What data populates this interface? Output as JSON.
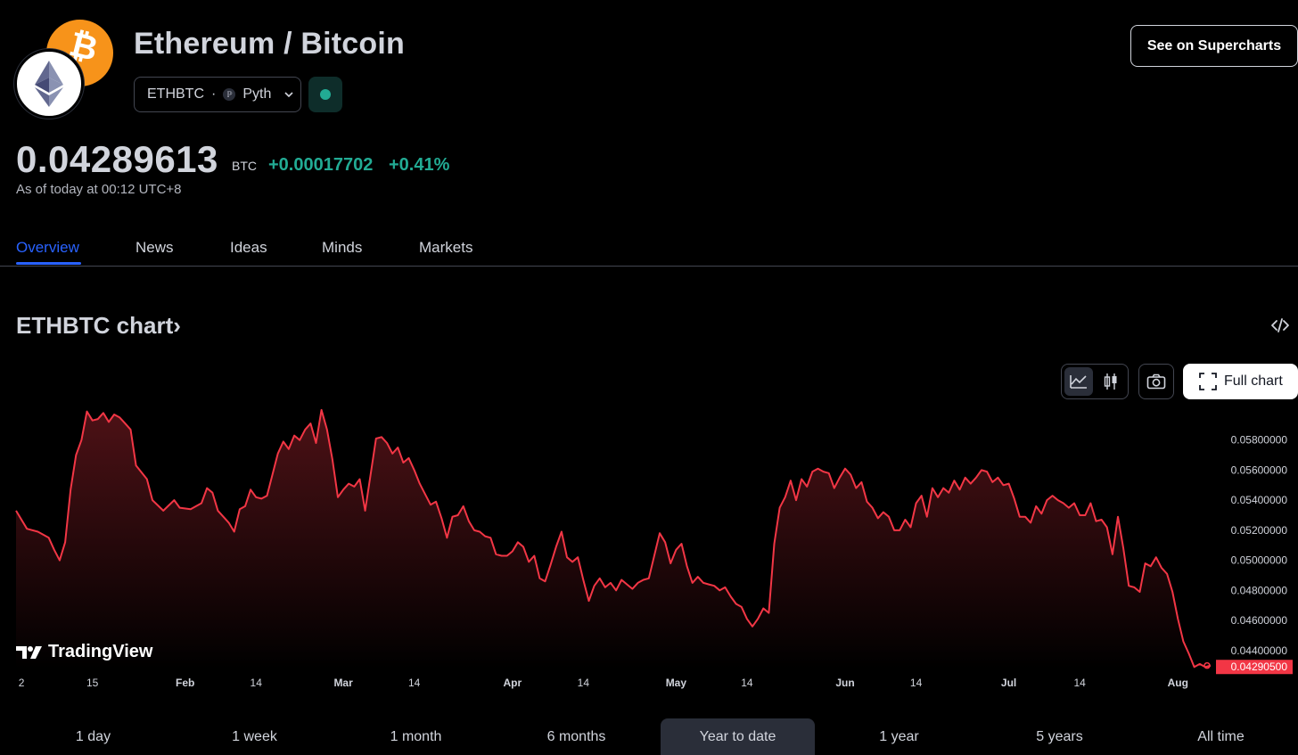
{
  "header": {
    "title": "Ethereum / Bitcoin",
    "symbol": "ETHBTC",
    "separator": "·",
    "source": "Pyth",
    "supercharts_label": "See on Supercharts",
    "btc_logo_glyph": "₿"
  },
  "quote": {
    "price": "0.04289613",
    "currency": "BTC",
    "change": "+0.00017702",
    "change_pct": "+0.41%",
    "as_of": "As of today at 00:12 UTC+8",
    "up_color": "#22ab94"
  },
  "tabs": [
    "Overview",
    "News",
    "Ideas",
    "Minds",
    "Markets"
  ],
  "active_tab": "Overview",
  "chart_section": {
    "heading": "ETHBTC chart",
    "heading_arrow": "›",
    "full_chart_label": "Full chart",
    "watermark": "TradingView"
  },
  "chart_data": {
    "type": "area",
    "line_color": "#f23645",
    "ylim": [
      0.0428,
      0.0597
    ],
    "y_ticks": [
      "0.05800000",
      "0.05600000",
      "0.05400000",
      "0.05200000",
      "0.05000000",
      "0.04800000",
      "0.04600000",
      "0.04400000"
    ],
    "y_tick_values": [
      0.058,
      0.056,
      0.054,
      0.052,
      0.05,
      0.048,
      0.046,
      0.044
    ],
    "last_value_label": "0.04290500",
    "last_value": 0.042905,
    "x_labels": [
      {
        "label": "2",
        "day": 2
      },
      {
        "label": "15",
        "day": 15
      },
      {
        "label": "Feb",
        "day": 32
      },
      {
        "label": "14",
        "day": 45
      },
      {
        "label": "Mar",
        "day": 61
      },
      {
        "label": "14",
        "day": 74
      },
      {
        "label": "Apr",
        "day": 92
      },
      {
        "label": "14",
        "day": 105
      },
      {
        "label": "May",
        "day": 122
      },
      {
        "label": "14",
        "day": 135
      },
      {
        "label": "Jun",
        "day": 153
      },
      {
        "label": "14",
        "day": 166
      },
      {
        "label": "Jul",
        "day": 183
      },
      {
        "label": "14",
        "day": 196
      },
      {
        "label": "Aug",
        "day": 214
      }
    ],
    "x_range": [
      1,
      220
    ],
    "points": [
      [
        1,
        0.0533
      ],
      [
        3,
        0.0521
      ],
      [
        5,
        0.0519
      ],
      [
        7,
        0.0515
      ],
      [
        8,
        0.0507
      ],
      [
        9,
        0.05
      ],
      [
        10,
        0.0512
      ],
      [
        11,
        0.0547
      ],
      [
        12,
        0.057
      ],
      [
        13,
        0.058
      ],
      [
        14,
        0.0599
      ],
      [
        15,
        0.0593
      ],
      [
        16,
        0.0594
      ],
      [
        17,
        0.0598
      ],
      [
        18,
        0.0592
      ],
      [
        19,
        0.0597
      ],
      [
        20,
        0.0595
      ],
      [
        21,
        0.0591
      ],
      [
        22,
        0.0587
      ],
      [
        23,
        0.0563
      ],
      [
        25,
        0.0554
      ],
      [
        26,
        0.054
      ],
      [
        28,
        0.0533
      ],
      [
        30,
        0.054
      ],
      [
        31,
        0.0535
      ],
      [
        33,
        0.0534
      ],
      [
        35,
        0.0538
      ],
      [
        36,
        0.0548
      ],
      [
        37,
        0.0545
      ],
      [
        38,
        0.0533
      ],
      [
        40,
        0.0525
      ],
      [
        41,
        0.0519
      ],
      [
        42,
        0.0534
      ],
      [
        43,
        0.0536
      ],
      [
        44,
        0.0547
      ],
      [
        45,
        0.0542
      ],
      [
        46,
        0.0541
      ],
      [
        47,
        0.0543
      ],
      [
        48,
        0.0557
      ],
      [
        49,
        0.0571
      ],
      [
        50,
        0.0579
      ],
      [
        51,
        0.0574
      ],
      [
        52,
        0.0583
      ],
      [
        53,
        0.058
      ],
      [
        54,
        0.0587
      ],
      [
        55,
        0.0591
      ],
      [
        56,
        0.0578
      ],
      [
        57,
        0.06
      ],
      [
        58,
        0.0587
      ],
      [
        59,
        0.0567
      ],
      [
        60,
        0.0542
      ],
      [
        61,
        0.0547
      ],
      [
        62,
        0.0551
      ],
      [
        63,
        0.0549
      ],
      [
        64,
        0.0554
      ],
      [
        65,
        0.0533
      ],
      [
        66,
        0.0557
      ],
      [
        67,
        0.0581
      ],
      [
        68,
        0.0582
      ],
      [
        69,
        0.0578
      ],
      [
        70,
        0.0571
      ],
      [
        71,
        0.0575
      ],
      [
        72,
        0.0565
      ],
      [
        73,
        0.0568
      ],
      [
        74,
        0.056
      ],
      [
        75,
        0.0551
      ],
      [
        76,
        0.0544
      ],
      [
        77,
        0.0537
      ],
      [
        78,
        0.0539
      ],
      [
        79,
        0.0528
      ],
      [
        80,
        0.0515
      ],
      [
        81,
        0.0529
      ],
      [
        82,
        0.053
      ],
      [
        83,
        0.0536
      ],
      [
        84,
        0.0526
      ],
      [
        85,
        0.052
      ],
      [
        86,
        0.0519
      ],
      [
        87,
        0.0516
      ],
      [
        88,
        0.0515
      ],
      [
        89,
        0.0504
      ],
      [
        90,
        0.0503
      ],
      [
        91,
        0.0503
      ],
      [
        92,
        0.0506
      ],
      [
        93,
        0.0512
      ],
      [
        94,
        0.0509
      ],
      [
        95,
        0.0499
      ],
      [
        96,
        0.0503
      ],
      [
        97,
        0.0488
      ],
      [
        98,
        0.0486
      ],
      [
        99,
        0.0497
      ],
      [
        100,
        0.0509
      ],
      [
        101,
        0.0519
      ],
      [
        102,
        0.0502
      ],
      [
        103,
        0.0499
      ],
      [
        104,
        0.0502
      ],
      [
        105,
        0.0487
      ],
      [
        106,
        0.0473
      ],
      [
        107,
        0.0483
      ],
      [
        108,
        0.0488
      ],
      [
        109,
        0.0482
      ],
      [
        110,
        0.0485
      ],
      [
        111,
        0.048
      ],
      [
        112,
        0.0487
      ],
      [
        113,
        0.0484
      ],
      [
        114,
        0.0481
      ],
      [
        115,
        0.0485
      ],
      [
        116,
        0.0487
      ],
      [
        117,
        0.0488
      ],
      [
        118,
        0.0503
      ],
      [
        119,
        0.0518
      ],
      [
        120,
        0.0512
      ],
      [
        121,
        0.0498
      ],
      [
        122,
        0.0507
      ],
      [
        123,
        0.0511
      ],
      [
        124,
        0.0496
      ],
      [
        125,
        0.0485
      ],
      [
        126,
        0.0489
      ],
      [
        127,
        0.0485
      ],
      [
        128,
        0.0484
      ],
      [
        129,
        0.0483
      ],
      [
        130,
        0.048
      ],
      [
        131,
        0.0482
      ],
      [
        132,
        0.0476
      ],
      [
        133,
        0.0471
      ],
      [
        134,
        0.0469
      ],
      [
        135,
        0.0461
      ],
      [
        136,
        0.0456
      ],
      [
        137,
        0.0461
      ],
      [
        138,
        0.0468
      ],
      [
        139,
        0.0465
      ],
      [
        140,
        0.0511
      ],
      [
        141,
        0.0535
      ],
      [
        142,
        0.0542
      ],
      [
        143,
        0.0553
      ],
      [
        144,
        0.054
      ],
      [
        145,
        0.0554
      ],
      [
        146,
        0.0549
      ],
      [
        147,
        0.0559
      ],
      [
        148,
        0.0561
      ],
      [
        149,
        0.0559
      ],
      [
        150,
        0.0558
      ],
      [
        151,
        0.0548
      ],
      [
        152,
        0.0555
      ],
      [
        153,
        0.0561
      ],
      [
        154,
        0.0557
      ],
      [
        155,
        0.0548
      ],
      [
        156,
        0.0552
      ],
      [
        157,
        0.0539
      ],
      [
        158,
        0.0535
      ],
      [
        159,
        0.0528
      ],
      [
        160,
        0.0532
      ],
      [
        161,
        0.0529
      ],
      [
        162,
        0.052
      ],
      [
        163,
        0.052
      ],
      [
        164,
        0.0527
      ],
      [
        165,
        0.0522
      ],
      [
        166,
        0.0538
      ],
      [
        167,
        0.0543
      ],
      [
        168,
        0.0529
      ],
      [
        169,
        0.0548
      ],
      [
        170,
        0.0542
      ],
      [
        171,
        0.0548
      ],
      [
        172,
        0.0545
      ],
      [
        173,
        0.0553
      ],
      [
        174,
        0.0547
      ],
      [
        175,
        0.0555
      ],
      [
        176,
        0.0551
      ],
      [
        177,
        0.0555
      ],
      [
        178,
        0.056
      ],
      [
        179,
        0.0559
      ],
      [
        180,
        0.0552
      ],
      [
        181,
        0.0555
      ],
      [
        182,
        0.055
      ],
      [
        183,
        0.0551
      ],
      [
        184,
        0.0541
      ],
      [
        185,
        0.0529
      ],
      [
        186,
        0.0529
      ],
      [
        187,
        0.0525
      ],
      [
        188,
        0.0536
      ],
      [
        189,
        0.0531
      ],
      [
        190,
        0.054
      ],
      [
        191,
        0.0543
      ],
      [
        192,
        0.054
      ],
      [
        193,
        0.0538
      ],
      [
        194,
        0.0535
      ],
      [
        195,
        0.0538
      ],
      [
        196,
        0.053
      ],
      [
        197,
        0.053
      ],
      [
        198,
        0.0538
      ],
      [
        199,
        0.0526
      ],
      [
        200,
        0.0527
      ],
      [
        201,
        0.0522
      ],
      [
        202,
        0.0504
      ],
      [
        203,
        0.0529
      ],
      [
        204,
        0.0508
      ],
      [
        205,
        0.0483
      ],
      [
        206,
        0.0482
      ],
      [
        207,
        0.0479
      ],
      [
        208,
        0.0498
      ],
      [
        209,
        0.0496
      ],
      [
        210,
        0.0502
      ],
      [
        211,
        0.0495
      ],
      [
        212,
        0.0491
      ],
      [
        213,
        0.0479
      ],
      [
        214,
        0.0461
      ],
      [
        215,
        0.0446
      ],
      [
        216,
        0.0438
      ],
      [
        217,
        0.0429
      ],
      [
        218,
        0.0431
      ],
      [
        219,
        0.0429
      ],
      [
        220,
        0.043
      ]
    ]
  },
  "ranges": [
    "1 day",
    "1 week",
    "1 month",
    "6 months",
    "Year to date",
    "1 year",
    "5 years",
    "All time"
  ],
  "active_range": "Year to date"
}
